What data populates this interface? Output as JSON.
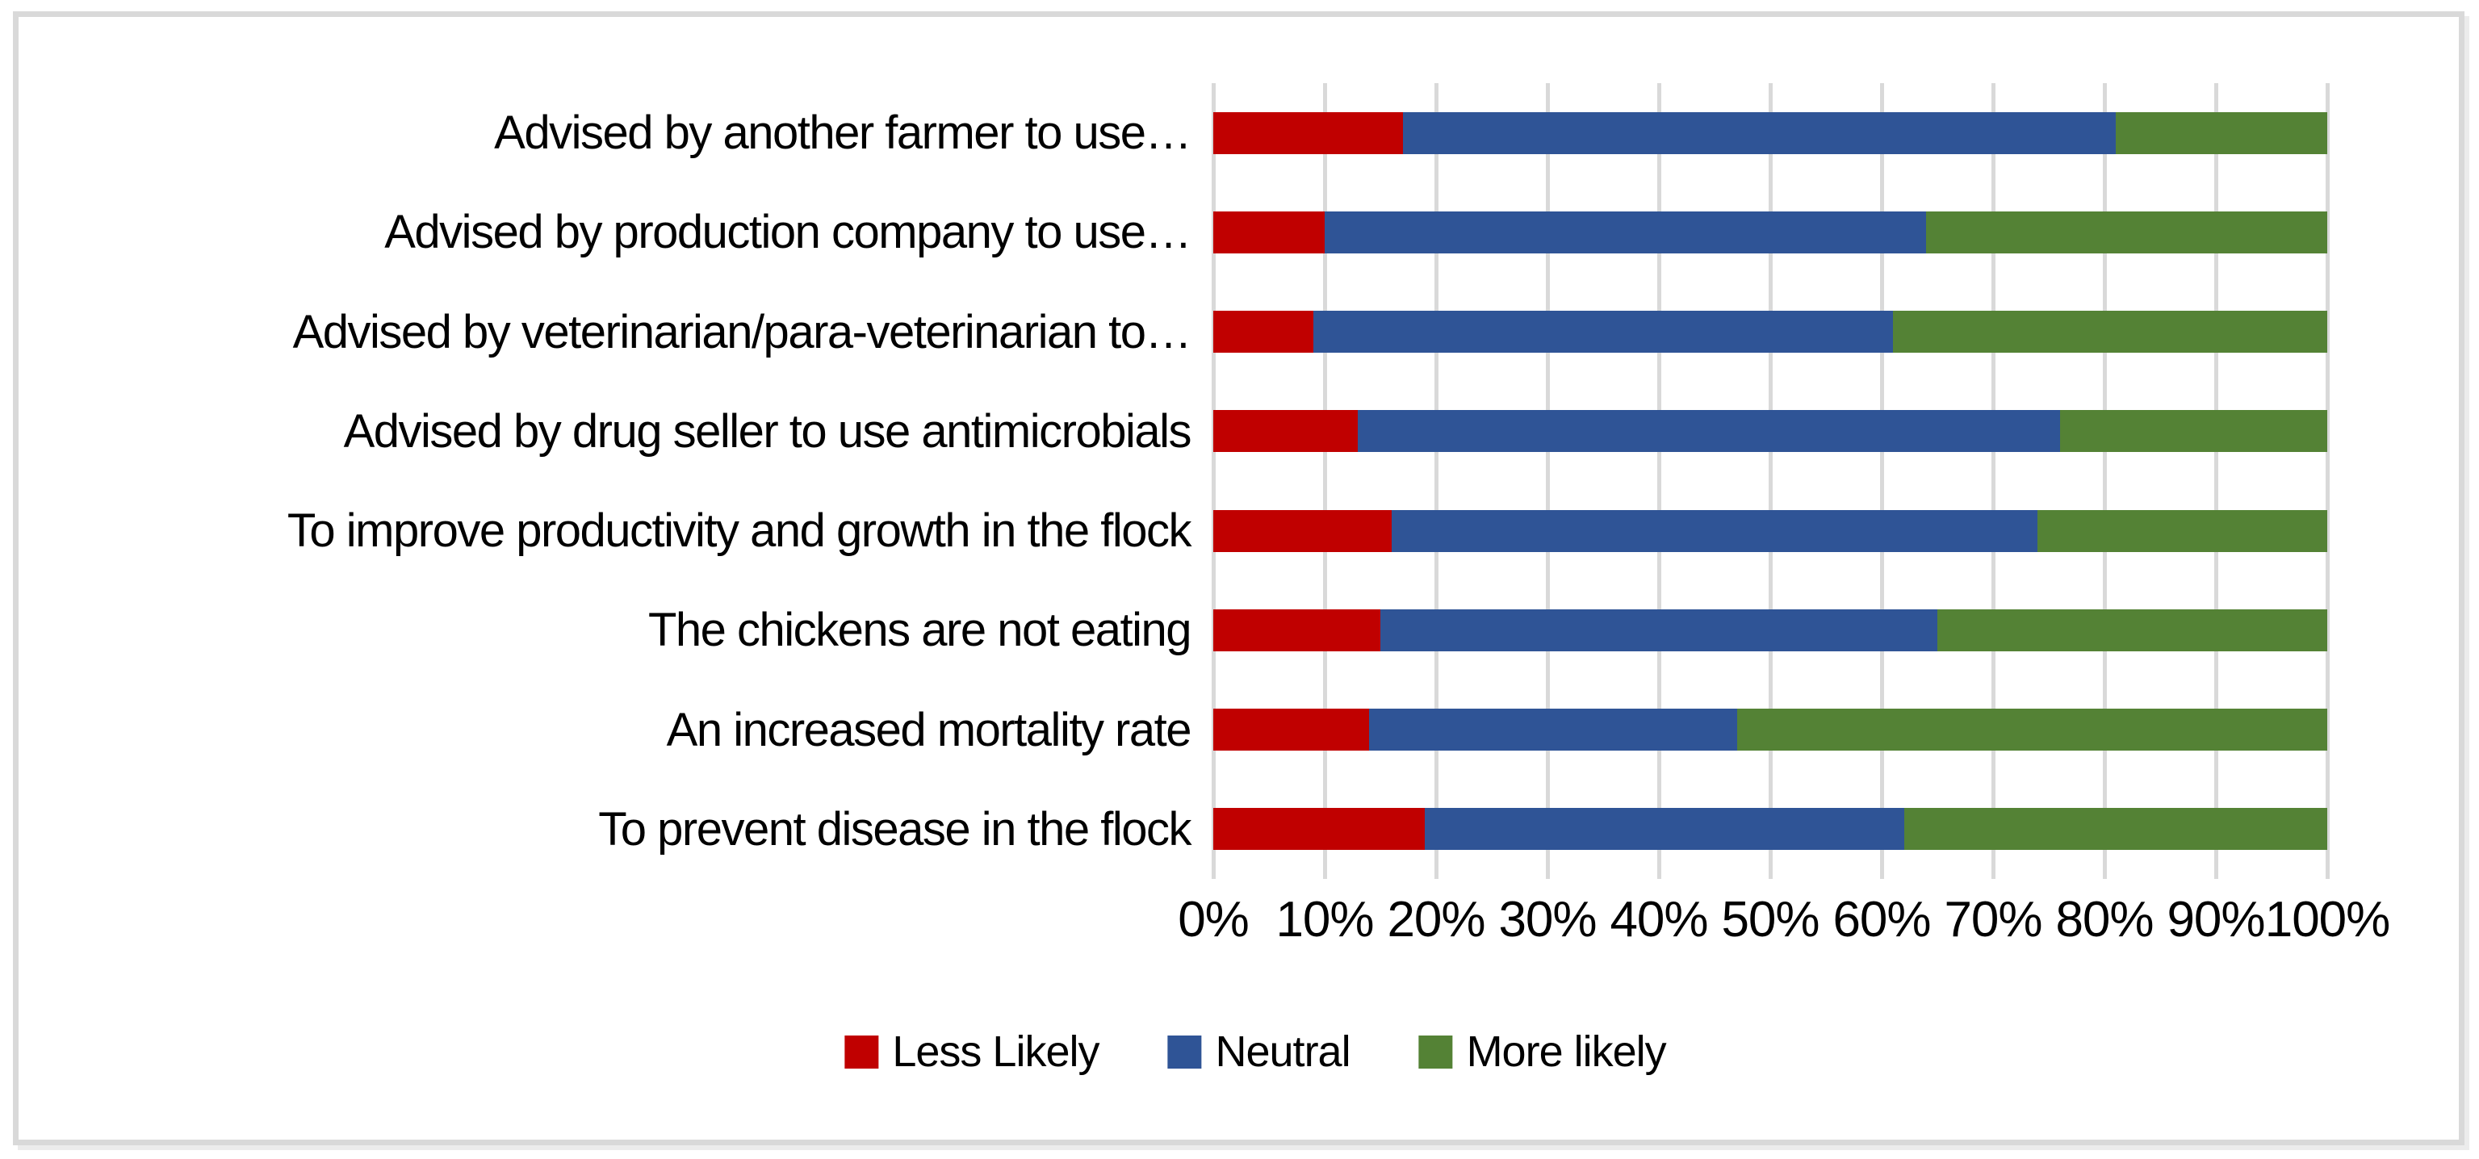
{
  "chart_data": {
    "type": "bar",
    "subtype": "stacked-horizontal-100pct",
    "title": "",
    "xlabel": "",
    "ylabel": "",
    "xlim": [
      0,
      100
    ],
    "x_ticks": [
      "0%",
      "10%",
      "20%",
      "30%",
      "40%",
      "50%",
      "60%",
      "70%",
      "80%",
      "90%",
      "100%"
    ],
    "grid": "vertical",
    "legend_position": "bottom",
    "categories": [
      "Advised by another farmer to use…",
      "Advised by production company to use…",
      "Advised by veterinarian/para-veterinarian to…",
      "Advised by drug seller to use antimicrobials",
      "To improve productivity and growth in the flock",
      "The chickens are not eating",
      "An increased mortality rate",
      "To prevent disease in the flock"
    ],
    "series": [
      {
        "name": "Less Likely",
        "color": "#C00000",
        "values": [
          17,
          10,
          9,
          13,
          16,
          15,
          14,
          19
        ]
      },
      {
        "name": "Neutral",
        "color": "#2F5496",
        "values": [
          64,
          54,
          52,
          63,
          58,
          50,
          33,
          43
        ]
      },
      {
        "name": "More likely",
        "color": "#548235",
        "values": [
          19,
          36,
          39,
          24,
          26,
          35,
          53,
          38
        ]
      }
    ]
  },
  "style_colors": {
    "gridline": "#D9D9D9",
    "frame_border": "#D9D9D9",
    "text": "#000000",
    "background": "#FFFFFF"
  }
}
